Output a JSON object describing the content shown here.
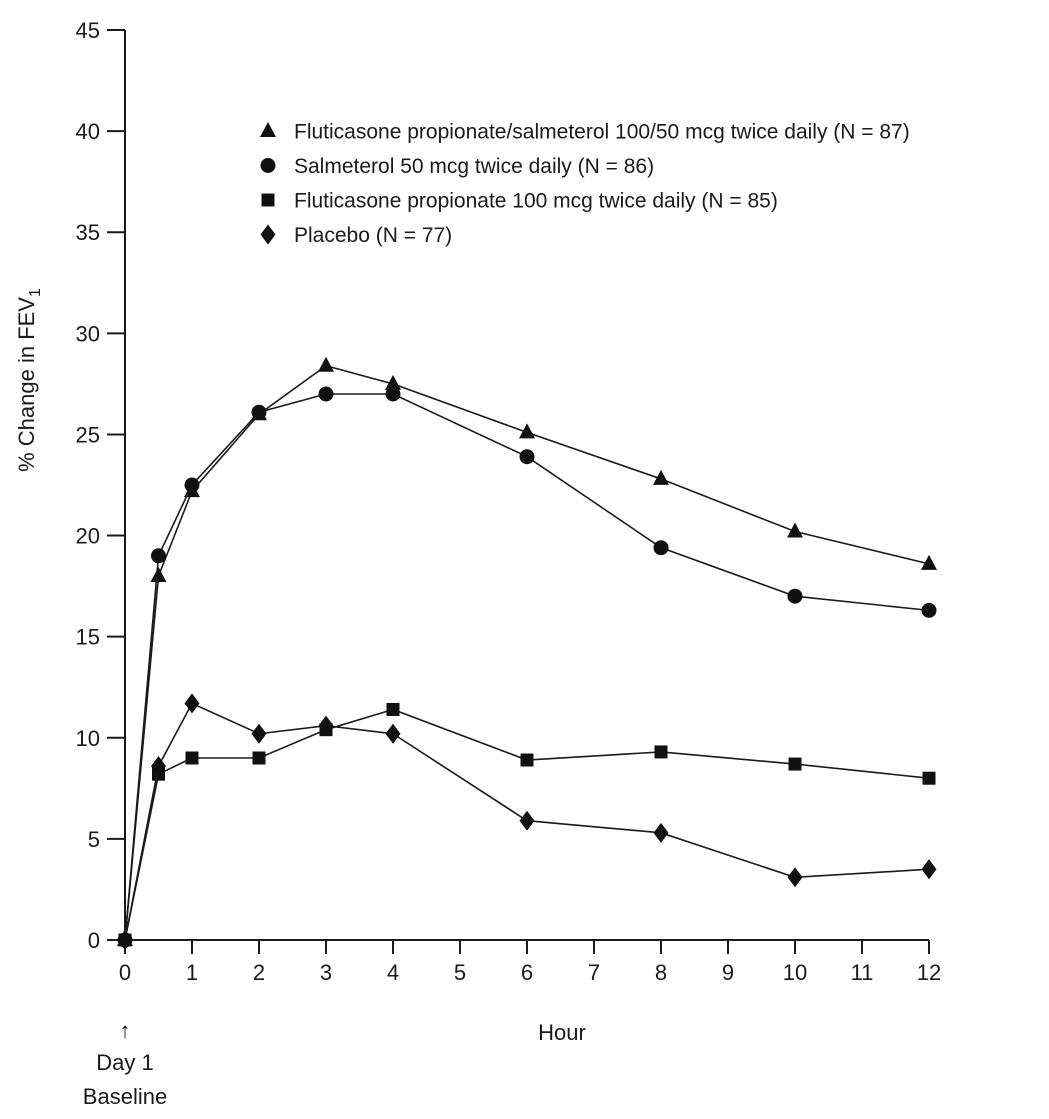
{
  "chart_data": {
    "type": "line",
    "xlabel": "Hour",
    "ylabel_main": "% Change in FEV",
    "ylabel_sub": "1",
    "xlim": [
      0,
      12
    ],
    "ylim": [
      0,
      45
    ],
    "x_ticks": [
      0,
      1,
      2,
      3,
      4,
      5,
      6,
      7,
      8,
      9,
      10,
      11,
      12
    ],
    "y_ticks": [
      0,
      5,
      10,
      15,
      20,
      25,
      30,
      35,
      40,
      45
    ],
    "grid": false,
    "legend_position": "top-right",
    "annotation": {
      "arrow": "↑",
      "line1": "Day 1",
      "line2": "Baseline"
    },
    "series": [
      {
        "name": "Fluticasone propionate/salmeterol 100/50 mcg twice daily (N = 87)",
        "marker": "triangle",
        "x": [
          0,
          0.5,
          1,
          2,
          3,
          4,
          6,
          8,
          10,
          12
        ],
        "values": [
          0,
          18.0,
          22.2,
          26.0,
          28.4,
          27.5,
          25.1,
          22.8,
          20.2,
          18.6
        ]
      },
      {
        "name": "Salmeterol 50 mcg twice daily (N = 86)",
        "marker": "circle",
        "x": [
          0,
          0.5,
          1,
          2,
          3,
          4,
          6,
          8,
          10,
          12
        ],
        "values": [
          0,
          19.0,
          22.5,
          26.1,
          27.0,
          27.0,
          23.9,
          19.4,
          17.0,
          16.3
        ]
      },
      {
        "name": "Fluticasone propionate 100 mcg twice daily (N = 85)",
        "marker": "square",
        "x": [
          0,
          0.5,
          1,
          2,
          3,
          4,
          6,
          8,
          10,
          12
        ],
        "values": [
          0,
          8.2,
          9.0,
          9.0,
          10.4,
          11.4,
          8.9,
          9.3,
          8.7,
          8.0
        ]
      },
      {
        "name": "Placebo (N = 77)",
        "marker": "diamond",
        "x": [
          0,
          0.5,
          1,
          2,
          3,
          4,
          6,
          8,
          10,
          12
        ],
        "values": [
          0,
          8.6,
          11.7,
          10.2,
          10.6,
          10.2,
          5.9,
          5.3,
          3.1,
          3.5
        ]
      }
    ],
    "colors": {
      "line": "#1a1a1a",
      "marker": "#111111",
      "axis": "#1a1a1a"
    }
  }
}
